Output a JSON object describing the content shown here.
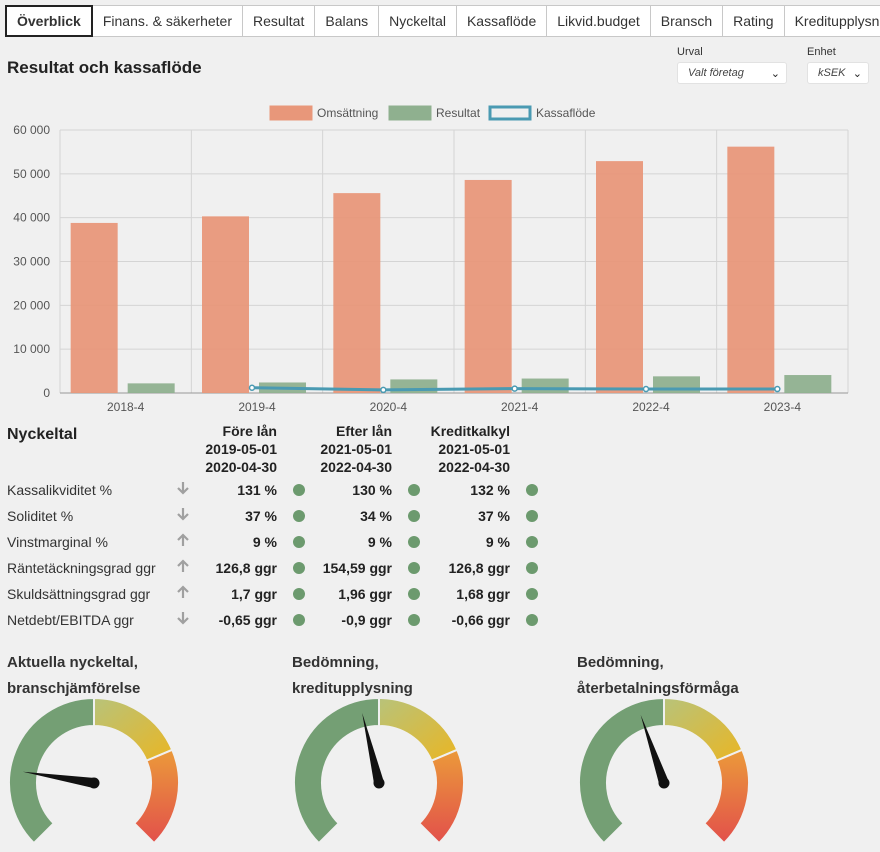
{
  "tabs": [
    {
      "label": "Överblick",
      "active": true
    },
    {
      "label": "Finans. & säkerheter"
    },
    {
      "label": "Resultat"
    },
    {
      "label": "Balans"
    },
    {
      "label": "Nyckeltal"
    },
    {
      "label": "Kassaflöde"
    },
    {
      "label": "Likvid.budget"
    },
    {
      "label": "Bransch"
    },
    {
      "label": "Rating"
    },
    {
      "label": "Kreditupplysning"
    }
  ],
  "section_title": "Resultat och kassaflöde",
  "urval": {
    "label": "Urval",
    "value": "Valt företag"
  },
  "enhet": {
    "label": "Enhet",
    "value": "kSEK"
  },
  "chart_data": {
    "type": "bar",
    "categories": [
      "2018-4",
      "2019-4",
      "2020-4",
      "2021-4",
      "2022-4",
      "2023-4"
    ],
    "series": [
      {
        "name": "Omsättning",
        "type": "bar",
        "color": "#e8977a",
        "values": [
          38800,
          40300,
          45600,
          48600,
          52900,
          56200
        ]
      },
      {
        "name": "Resultat",
        "type": "bar",
        "color": "#8fb08f",
        "values": [
          2200,
          2400,
          3100,
          3300,
          3800,
          4100
        ]
      },
      {
        "name": "Kassaflöde",
        "type": "line",
        "color": "#4a9ab2",
        "values": [
          null,
          1200,
          700,
          1000,
          900,
          900
        ]
      }
    ],
    "ylim": [
      0,
      60000
    ],
    "yticks": [
      "0",
      "10 000",
      "20 000",
      "30 000",
      "40 000",
      "50 000",
      "60 000"
    ],
    "legend": "top",
    "grid": true
  },
  "nyckeltal": {
    "title": "Nyckeltal",
    "columns": [
      {
        "title": "Före lån",
        "from": "2019-05-01",
        "to": "2020-04-30"
      },
      {
        "title": "Efter lån",
        "from": "2021-05-01",
        "to": "2022-04-30"
      },
      {
        "title": "Kreditkalkyl",
        "from": "2021-05-01",
        "to": "2022-04-30"
      }
    ],
    "rows": [
      {
        "label": "Kassalikviditet %",
        "arrow": "🡓",
        "values": [
          "131 %",
          "130 %",
          "132 %"
        ]
      },
      {
        "label": "Soliditet %",
        "arrow": "🡓",
        "values": [
          "37 %",
          "34 %",
          "37 %"
        ]
      },
      {
        "label": "Vinstmarginal %",
        "arrow": "🡑",
        "values": [
          "9 %",
          "9 %",
          "9 %"
        ]
      },
      {
        "label": "Räntetäckningsgrad ggr",
        "arrow": "🡑",
        "values": [
          "126,8 ggr",
          "154,59 ggr",
          "126,8 ggr"
        ]
      },
      {
        "label": "Skuldsättningsgrad ggr",
        "arrow": "🡑",
        "values": [
          "1,7 ggr",
          "1,96 ggr",
          "1,68 ggr"
        ]
      },
      {
        "label": "Netdebt/EBITDA ggr",
        "arrow": "🡓",
        "values": [
          "-0,65 ggr",
          "-0,9 ggr",
          "-0,66 ggr"
        ]
      }
    ],
    "status_color": "#6c9a6e"
  },
  "gauges": [
    {
      "line1": "Aktuella nyckeltal,",
      "line2": "branschjämförelse",
      "level": 0.2
    },
    {
      "line1": "Bedömning,",
      "line2": "kreditupplysning",
      "level": 0.45
    },
    {
      "line1": "Bedömning,",
      "line2": "återbetalningsförmåga",
      "level": 0.43
    }
  ]
}
